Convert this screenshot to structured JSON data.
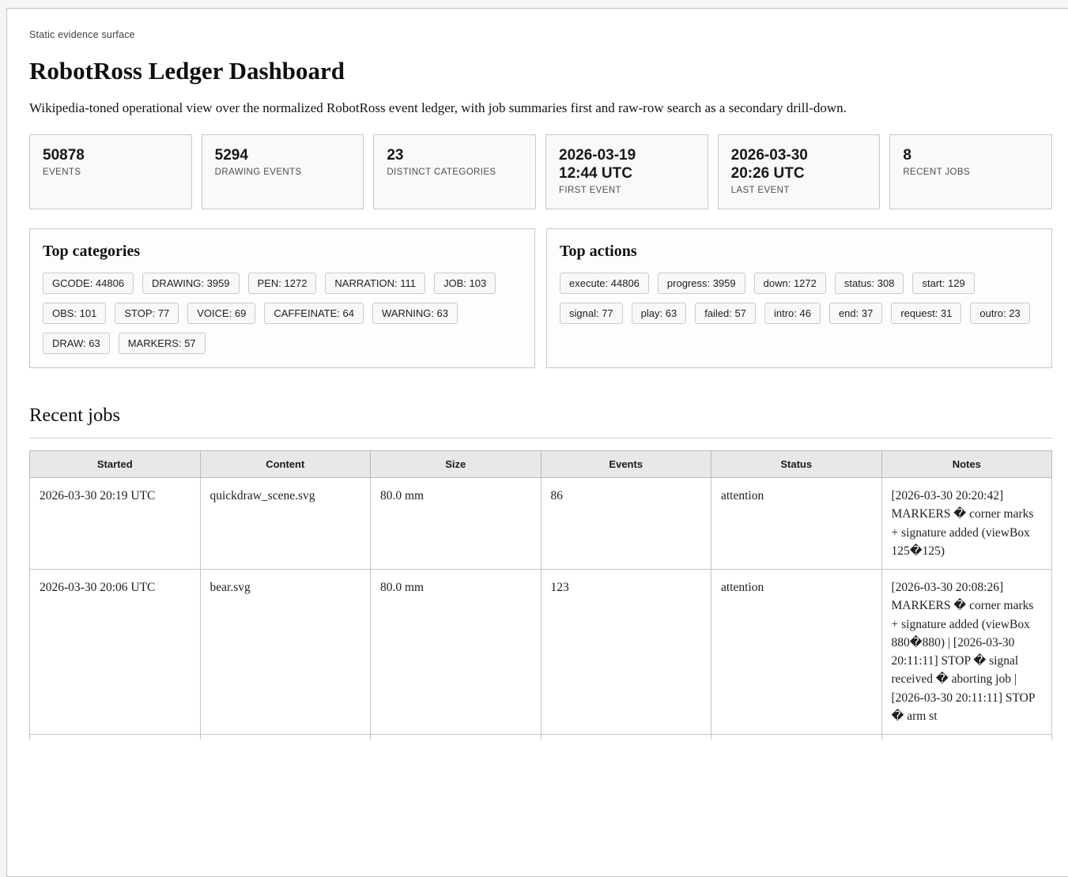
{
  "page": {
    "eyebrow": "Static evidence surface",
    "title": "RobotRoss Ledger Dashboard",
    "subtitle": "Wikipedia-toned operational view over the normalized RobotRoss event ledger, with job summaries first and raw-row search as a secondary drill-down."
  },
  "colors": {
    "page_background": "#f4f5f7",
    "card_background": "#ffffff",
    "stat_background": "#f9f9f9",
    "chip_background": "#f8f8f8",
    "table_header_background": "#e7e8ea",
    "border": "#c6c8cb",
    "text": "#1a1a1a"
  },
  "stats": [
    {
      "value": "50878",
      "label": "EVENTS"
    },
    {
      "value": "5294",
      "label": "DRAWING EVENTS"
    },
    {
      "value": "23",
      "label": "DISTINCT CATEGORIES"
    },
    {
      "value": "2026-03-19\n12:44 UTC",
      "label": "FIRST EVENT"
    },
    {
      "value": "2026-03-30\n20:26 UTC",
      "label": "LAST EVENT"
    },
    {
      "value": "8",
      "label": "RECENT JOBS"
    }
  ],
  "top_categories": {
    "heading": "Top categories",
    "chips": [
      "GCODE: 44806",
      "DRAWING: 3959",
      "PEN: 1272",
      "NARRATION: 111",
      "JOB: 103",
      "OBS: 101",
      "STOP: 77",
      "VOICE: 69",
      "CAFFEINATE: 64",
      "WARNING: 63",
      "DRAW: 63",
      "MARKERS: 57"
    ]
  },
  "top_actions": {
    "heading": "Top actions",
    "chips": [
      "execute: 44806",
      "progress: 3959",
      "down: 1272",
      "status: 308",
      "start: 129",
      "signal: 77",
      "play: 63",
      "failed: 57",
      "intro: 46",
      "end: 37",
      "request: 31",
      "outro: 23"
    ]
  },
  "recent_jobs": {
    "heading": "Recent jobs",
    "columns": [
      "Started",
      "Content",
      "Size",
      "Events",
      "Status",
      "Notes"
    ],
    "rows": [
      {
        "started": "2026-03-30 20:19 UTC",
        "content": "quickdraw_scene.svg",
        "size": "80.0 mm",
        "events": "86",
        "status": "attention",
        "notes": "[2026-03-30 20:20:42] MARKERS � corner marks + signature added (viewBox 125�125)"
      },
      {
        "started": "2026-03-30 20:06 UTC",
        "content": "bear.svg",
        "size": "80.0 mm",
        "events": "123",
        "status": "attention",
        "notes": "[2026-03-30 20:08:26] MARKERS � corner marks + signature added (viewBox 880�880) | [2026-03-30 20:11:11] STOP � signal received � aborting job | [2026-03-30 20:11:11] STOP � arm st"
      }
    ]
  }
}
